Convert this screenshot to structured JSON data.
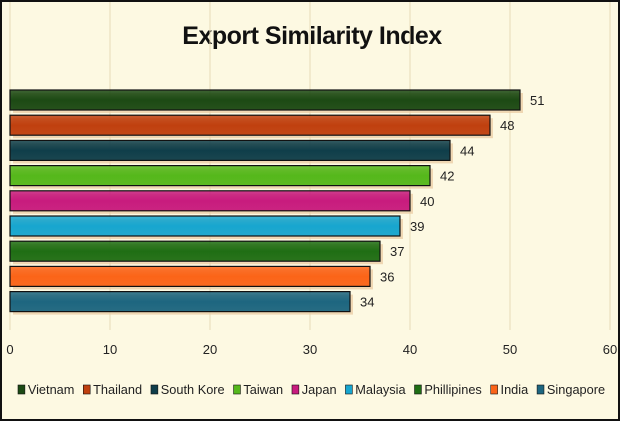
{
  "chart_data": {
    "type": "bar",
    "orientation": "horizontal",
    "title": "Export Similarity Index",
    "categories": [
      "Vietnam",
      "Thailand",
      "South Kore",
      "Taiwan",
      "Japan",
      "Malaysia",
      "Phillipines",
      "India",
      "Singapore"
    ],
    "values": [
      51,
      48,
      44,
      42,
      40,
      39,
      37,
      36,
      34
    ],
    "colors": [
      "#1c4a14",
      "#c0400f",
      "#0f3e4a",
      "#55b81b",
      "#c81b7e",
      "#17a6cf",
      "#1f6e14",
      "#fb6418",
      "#1d6680"
    ],
    "xlim": [
      0,
      60
    ],
    "xticks": [
      0,
      10,
      20,
      30,
      40,
      50,
      60
    ],
    "xtick_labels": [
      "0",
      "10",
      "20",
      "30",
      "40",
      "50",
      "60"
    ],
    "grid": true,
    "legend_position": "bottom",
    "xlabel": "",
    "ylabel": ""
  }
}
